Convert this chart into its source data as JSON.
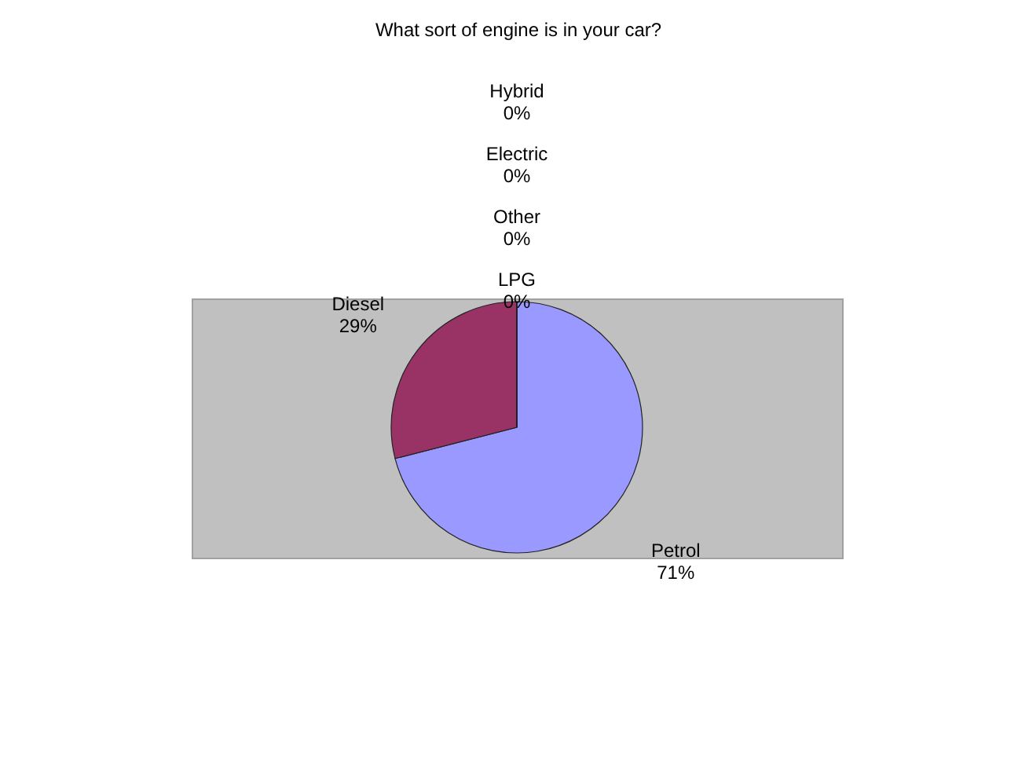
{
  "chart_data": {
    "type": "pie",
    "title": "What sort of engine is in your car?",
    "categories": [
      "Petrol",
      "Diesel",
      "LPG",
      "Other",
      "Electric",
      "Hybrid"
    ],
    "values": [
      71,
      29,
      0,
      0,
      0,
      0
    ],
    "colors": [
      "#9999ff",
      "#993366",
      "#ffffcc",
      "#ccffff",
      "#660066",
      "#ff8080"
    ],
    "value_labels": [
      "71%",
      "29%",
      "0%",
      "0%",
      "0%",
      "0%"
    ]
  }
}
